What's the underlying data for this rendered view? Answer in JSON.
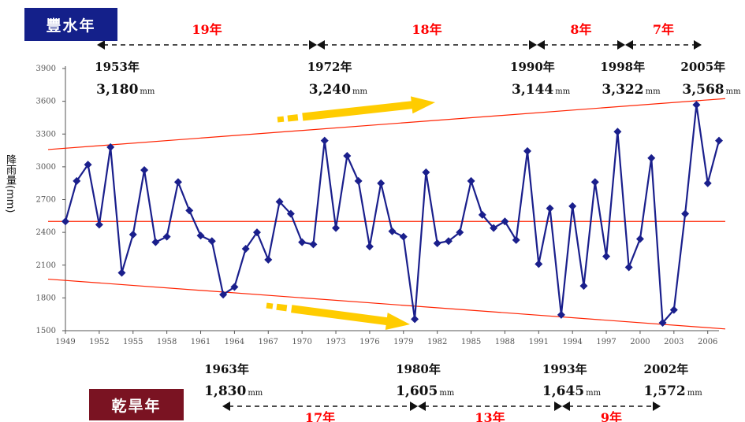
{
  "wet_badge": "豐水年",
  "dry_badge": "乾旱年",
  "chart_data": {
    "type": "line",
    "ylabel": "降雨量(mm)",
    "xlim": [
      1949,
      2007
    ],
    "ylim": [
      1500,
      4000
    ],
    "yticks": [
      1500,
      1800,
      2100,
      2400,
      2700,
      3000,
      3300,
      3600,
      3900
    ],
    "xticks": [
      1949,
      1952,
      1955,
      1958,
      1961,
      1964,
      1967,
      1970,
      1973,
      1976,
      1979,
      1982,
      1985,
      1988,
      1991,
      1994,
      1997,
      2000,
      2003,
      2006
    ],
    "grid": false,
    "colors": {
      "series": "#1a1f8c",
      "trend": "#ff2200",
      "arrow": "#ffcc00",
      "label": "#ff0000"
    },
    "series": [
      {
        "x": [
          1949,
          1950,
          1951,
          1952,
          1953,
          1954,
          1955,
          1956,
          1957,
          1958,
          1959,
          1960,
          1961,
          1962,
          1963,
          1964,
          1965,
          1966,
          1967,
          1968,
          1969,
          1970,
          1971,
          1972,
          1973,
          1974,
          1975,
          1976,
          1977,
          1978,
          1979,
          1980,
          1981,
          1982,
          1983,
          1984,
          1985,
          1986,
          1987,
          1988,
          1989,
          1990,
          1991,
          1992,
          1993,
          1994,
          1995,
          1996,
          1997,
          1998,
          1999,
          2000,
          2001,
          2002,
          2003,
          2004,
          2005,
          2006,
          2007
        ],
        "values": [
          2500,
          2870,
          3020,
          2470,
          3180,
          2030,
          2380,
          2970,
          2310,
          2360,
          2860,
          2600,
          2370,
          2320,
          1830,
          1900,
          2250,
          2400,
          2150,
          2680,
          2570,
          2310,
          2290,
          3240,
          2440,
          3100,
          2870,
          2270,
          2850,
          2410,
          2360,
          1605,
          2950,
          2300,
          2320,
          2400,
          2870,
          2560,
          2440,
          2500,
          2330,
          3144,
          2110,
          2620,
          1645,
          2640,
          1910,
          2860,
          2180,
          3322,
          2080,
          2340,
          3080,
          1572,
          1690,
          2570,
          3568,
          2850,
          3240
        ]
      }
    ],
    "reference_lines": [
      {
        "from": [
          1949,
          2500
        ],
        "to": [
          2007,
          2500
        ]
      },
      {
        "from": [
          1949,
          3170
        ],
        "to": [
          2007,
          3620
        ]
      },
      {
        "from": [
          1949,
          1960
        ],
        "to": [
          2007,
          1520
        ]
      }
    ],
    "wet_years": [
      {
        "year": "1953年",
        "amount": "3,180",
        "value": 3180
      },
      {
        "year": "1972年",
        "amount": "3,240",
        "value": 3240
      },
      {
        "year": "1990年",
        "amount": "3,144",
        "value": 3144
      },
      {
        "year": "1998年",
        "amount": "3,322",
        "value": 3322
      },
      {
        "year": "2005年",
        "amount": "3,568",
        "value": 3568
      }
    ],
    "dry_years": [
      {
        "year": "1963年",
        "amount": "1,830",
        "value": 1830
      },
      {
        "year": "1980年",
        "amount": "1,605",
        "value": 1605
      },
      {
        "year": "1993年",
        "amount": "1,645",
        "value": 1645
      },
      {
        "year": "2002年",
        "amount": "1,572",
        "value": 1572
      }
    ],
    "unit": "mm",
    "wet_intervals": [
      "19年",
      "18年",
      "8年",
      "7年"
    ],
    "dry_intervals": [
      "17年",
      "13年",
      "9年"
    ]
  }
}
